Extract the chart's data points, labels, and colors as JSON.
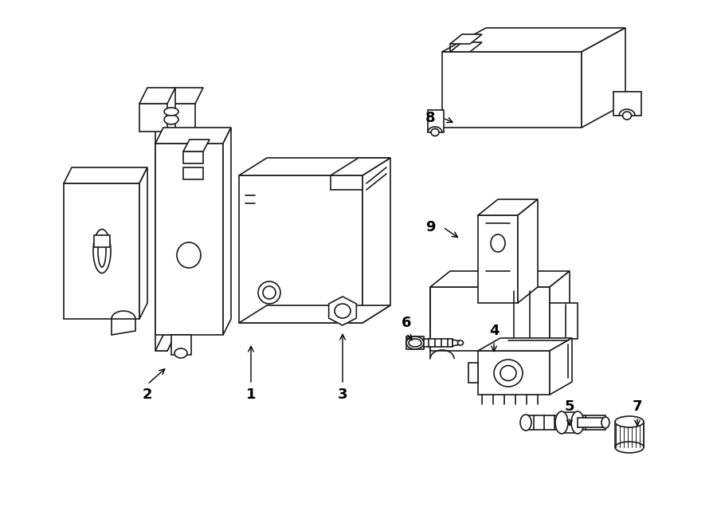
{
  "bg_color": "#ffffff",
  "line_color": "#1a1a1a",
  "lw": 1.2,
  "fig_width": 9.0,
  "fig_height": 6.61,
  "dpi": 100
}
